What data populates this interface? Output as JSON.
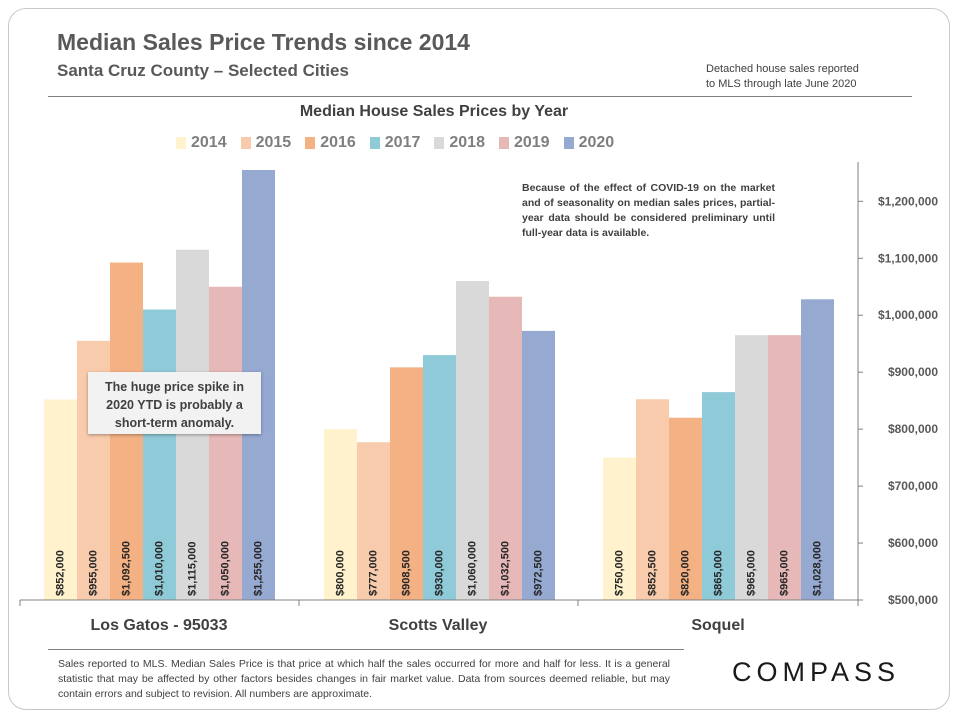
{
  "header": {
    "title": "Median Sales Price Trends since 2014",
    "subtitle": "Santa Cruz County – Selected Cities",
    "note_line1": "Detached house sales reported",
    "note_line2": "to MLS through late June 2020"
  },
  "annotations": {
    "covid_note": "Because of the effect of COVID-19 on the market and of seasonality on median sales prices, partial-year data should be considered preliminary until full-year data is available.",
    "anomaly_note_line1": "The huge price spike in",
    "anomaly_note_line2": "2020 YTD is probably a",
    "anomaly_note_line3": "short-term anomaly."
  },
  "footer": {
    "text": "Sales reported to MLS. Median Sales Price is that price at which half the sales occurred for more and half for less. It is a general statistic that may be affected by other factors besides changes in fair market value. Data from sources deemed reliable, but may contain errors and subject to revision. All numbers are approximate.",
    "logo": "COMPASS"
  },
  "chart_data": {
    "type": "bar",
    "title": "Median House Sales Prices by Year",
    "categories": [
      "Los Gatos - 95033",
      "Scotts Valley",
      "Soquel"
    ],
    "series": [
      {
        "name": "2014",
        "color": "#fff2cc",
        "values": [
          852000,
          800000,
          750000
        ],
        "labels": [
          "$852,000",
          "$800,000",
          "$750,000"
        ]
      },
      {
        "name": "2015",
        "color": "#f8cbad",
        "values": [
          955000,
          777000,
          852500
        ],
        "labels": [
          "$955,000",
          "$777,000",
          "$852,500"
        ]
      },
      {
        "name": "2016",
        "color": "#f4b183",
        "values": [
          1092500,
          908500,
          820000
        ],
        "labels": [
          "$1,092,500",
          "$908,500",
          "$820,000"
        ]
      },
      {
        "name": "2017",
        "color": "#8fcad8",
        "values": [
          1010000,
          930000,
          865000
        ],
        "labels": [
          "$1,010,000",
          "$930,000",
          "$865,000"
        ]
      },
      {
        "name": "2018",
        "color": "#d9d9d9",
        "values": [
          1115000,
          1060000,
          965000
        ],
        "labels": [
          "$1,115,000",
          "$1,060,000",
          "$965,000"
        ]
      },
      {
        "name": "2019",
        "color": "#e6b9b8",
        "values": [
          1050000,
          1032500,
          965000
        ],
        "labels": [
          "$1,050,000",
          "$1,032,500",
          "$965,000"
        ]
      },
      {
        "name": "2020",
        "color": "#95a9d1",
        "values": [
          1255000,
          972500,
          1028000
        ],
        "labels": [
          "$1,255,000",
          "$972,500",
          "$1,028,000"
        ]
      }
    ],
    "ylim": [
      500000,
      1255000
    ],
    "yticks": [
      500000,
      600000,
      700000,
      800000,
      900000,
      1000000,
      1100000,
      1200000
    ],
    "ytick_labels": [
      "$500,000",
      "$600,000",
      "$700,000",
      "$800,000",
      "$900,000",
      "$1,000,000",
      "$1,100,000",
      "$1,200,000"
    ],
    "y_axis_side": "right",
    "legend_position": "top",
    "grid": false
  }
}
